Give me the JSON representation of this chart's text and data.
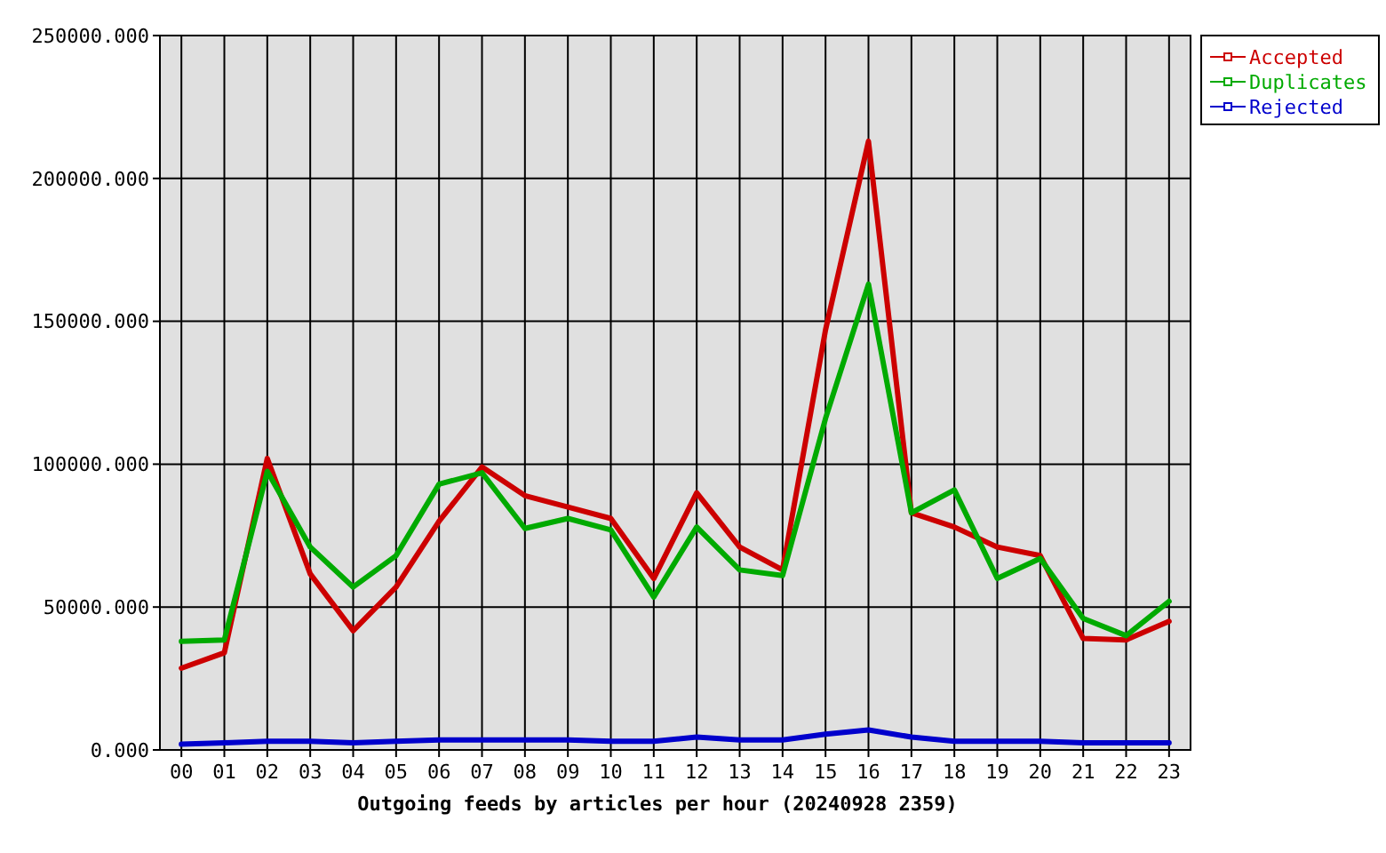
{
  "chart_data": {
    "type": "line",
    "xlabel": "Outgoing feeds by articles per hour (20240928 2359)",
    "categories": [
      "00",
      "01",
      "02",
      "03",
      "04",
      "05",
      "06",
      "07",
      "08",
      "09",
      "10",
      "11",
      "12",
      "13",
      "14",
      "15",
      "16",
      "17",
      "18",
      "19",
      "20",
      "21",
      "22",
      "23"
    ],
    "series": [
      {
        "name": "Accepted",
        "color": "#cc0000",
        "values": [
          28600,
          34000,
          102000,
          61600,
          41700,
          57000,
          80000,
          99000,
          89000,
          85000,
          81000,
          60000,
          90000,
          71000,
          63000,
          147000,
          213000,
          83000,
          78000,
          71000,
          68000,
          39000,
          38500,
          45000
        ]
      },
      {
        "name": "Duplicates",
        "color": "#00aa00",
        "values": [
          38000,
          38500,
          97500,
          71000,
          57000,
          68000,
          93000,
          97000,
          77500,
          81000,
          77000,
          53500,
          78000,
          63000,
          61000,
          116000,
          163000,
          83000,
          91000,
          60000,
          67000,
          46000,
          40000,
          52000
        ]
      },
      {
        "name": "Rejected",
        "color": "#0000cc",
        "values": [
          2000,
          2500,
          3000,
          3000,
          2500,
          3000,
          3500,
          3500,
          3500,
          3500,
          3000,
          3000,
          4500,
          3500,
          3500,
          5500,
          7000,
          4500,
          3000,
          3000,
          3000,
          2500,
          2500,
          2500
        ]
      }
    ],
    "ylim": [
      0,
      250000
    ],
    "yticks": [
      {
        "value": 0,
        "label": "0.000"
      },
      {
        "value": 50000,
        "label": "50000.000"
      },
      {
        "value": 100000,
        "label": "100000.000"
      },
      {
        "value": 150000,
        "label": "150000.000"
      },
      {
        "value": 200000,
        "label": "200000.000"
      },
      {
        "value": 250000,
        "label": "250000.000"
      }
    ],
    "grid": true,
    "legend": "top right"
  }
}
